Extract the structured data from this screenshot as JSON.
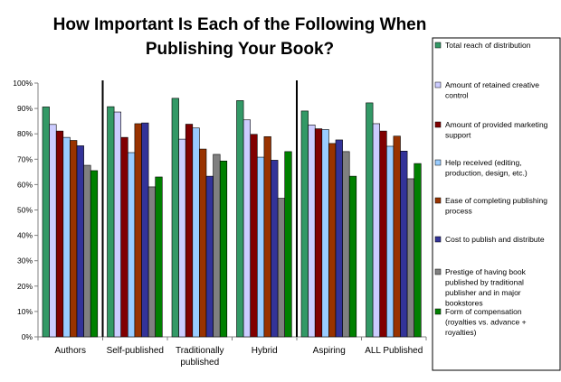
{
  "chart_data": {
    "type": "bar",
    "title": [
      "How Important Is Each of the Following When",
      "Publishing Your Book?"
    ],
    "xlabel": "",
    "ylabel": "",
    "ylim": [
      0,
      100
    ],
    "yticks": [
      "0%",
      "10%",
      "20%",
      "30%",
      "40%",
      "50%",
      "60%",
      "70%",
      "80%",
      "90%",
      "100%"
    ],
    "categories": [
      [
        "Authors"
      ],
      [
        "Self-published"
      ],
      [
        "Traditionally",
        "published"
      ],
      [
        "Hybrid"
      ],
      [
        "Aspiring"
      ],
      [
        "ALL Published"
      ]
    ],
    "group_dividers_after": [
      0,
      3
    ],
    "legend_position": "right",
    "series": [
      {
        "name": [
          "Total reach of distribution"
        ],
        "color": "#339966",
        "values": [
          90.6,
          90.7,
          94.0,
          93.1,
          89.0,
          92.2
        ]
      },
      {
        "name": [
          "Amount of retained creative",
          "control"
        ],
        "color": "#ccccff",
        "values": [
          83.7,
          88.6,
          77.9,
          85.5,
          83.5,
          84.0
        ]
      },
      {
        "name": [
          "Amount of provided marketing",
          "support"
        ],
        "color": "#800000",
        "values": [
          81.1,
          78.6,
          83.8,
          79.8,
          82.0,
          81.1
        ]
      },
      {
        "name": [
          "Help received (editing,",
          "production, design, etc.)"
        ],
        "color": "#99ccff",
        "values": [
          78.6,
          72.6,
          82.3,
          70.8,
          81.7,
          75.1
        ]
      },
      {
        "name": [
          "Ease of completing publishing",
          "process"
        ],
        "color": "#993300",
        "values": [
          77.4,
          84.0,
          74.0,
          78.9,
          76.2,
          79.1
        ]
      },
      {
        "name": [
          "Cost to publish and distribute"
        ],
        "color": "#333399",
        "values": [
          75.3,
          84.3,
          63.3,
          69.6,
          77.6,
          73.2
        ]
      },
      {
        "name": [
          "Prestige of having book",
          "published by traditional",
          "publisher and in major",
          "bookstores"
        ],
        "color": "#808080",
        "values": [
          67.6,
          59.1,
          71.9,
          54.6,
          73.0,
          62.3
        ]
      },
      {
        "name": [
          "Form of compensation",
          "(royalties vs. advance +",
          "royalties)"
        ],
        "color": "#008000",
        "values": [
          65.5,
          63.0,
          69.3,
          73.0,
          63.3,
          68.3
        ]
      }
    ]
  }
}
